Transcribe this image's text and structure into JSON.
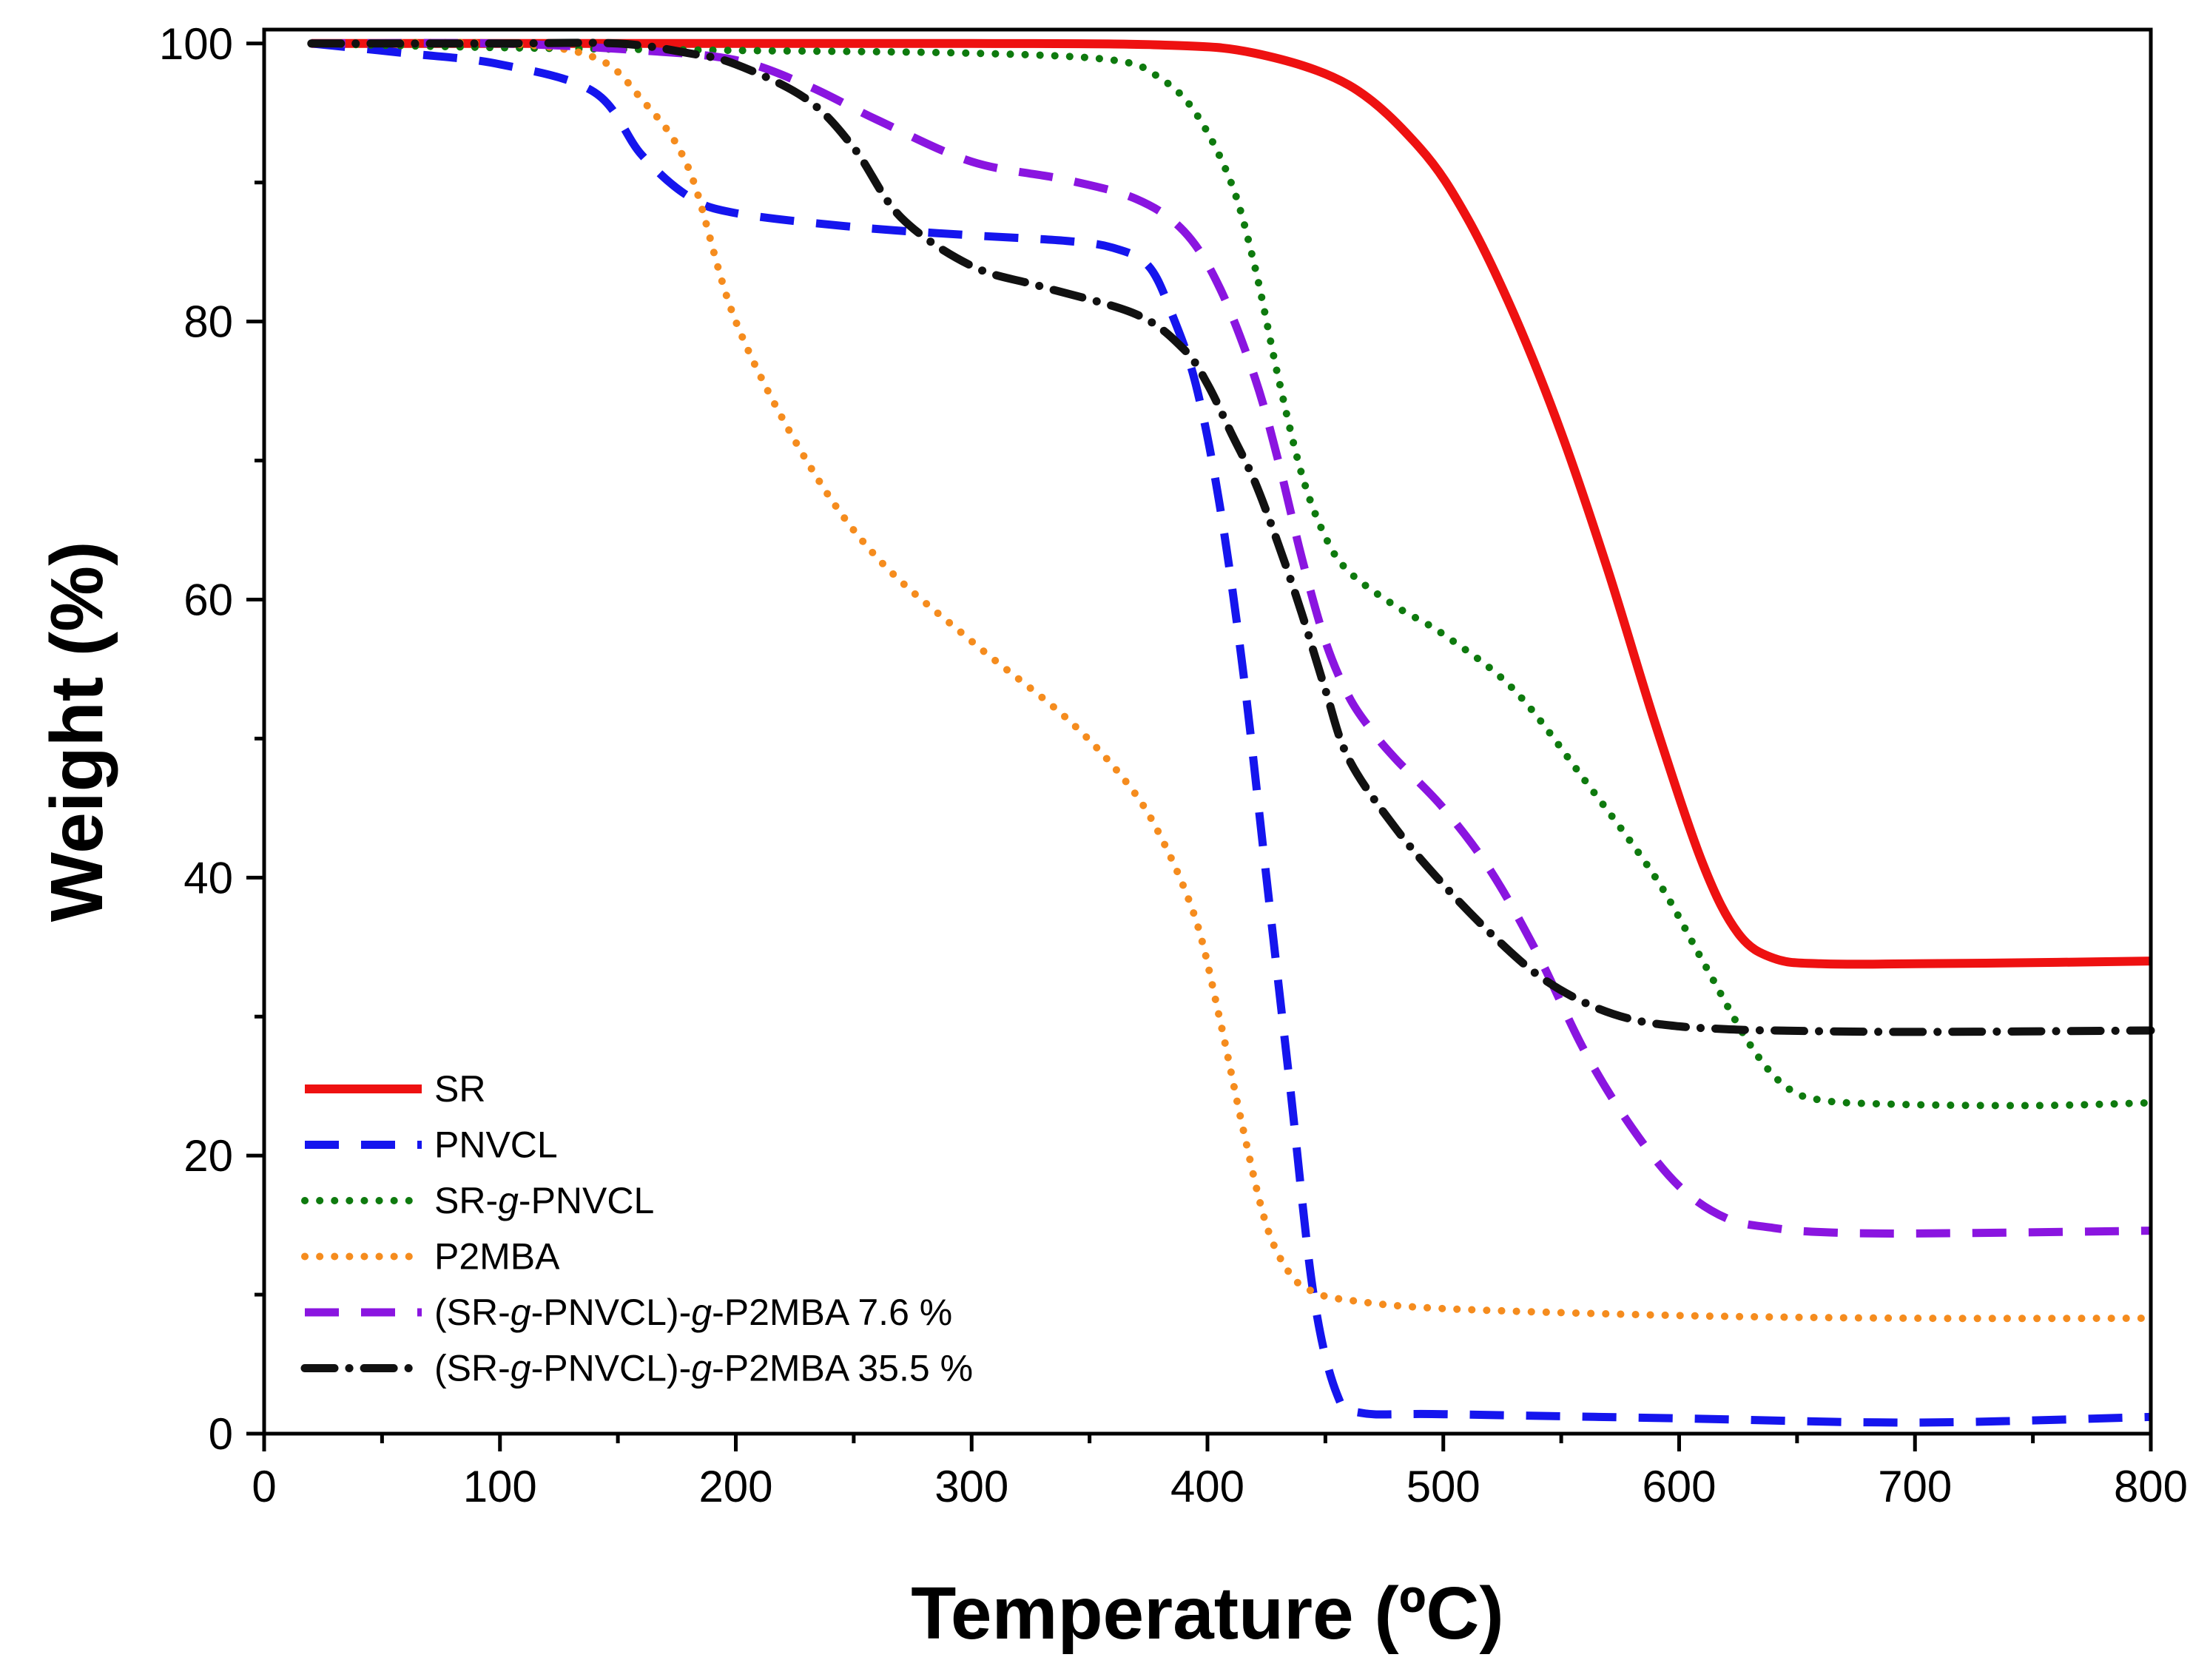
{
  "chart_data": {
    "type": "line",
    "title": "",
    "xlabel": "Temperature (ºC)",
    "ylabel": "Weight (%)",
    "xlim": [
      0,
      800
    ],
    "ylim": [
      0,
      100
    ],
    "xticks": [
      0,
      100,
      200,
      300,
      400,
      500,
      600,
      700,
      800
    ],
    "yticks": [
      0,
      20,
      40,
      60,
      80,
      100
    ],
    "grid": false,
    "legend_position": "bottom-left",
    "series": [
      {
        "name": "SR",
        "legend": [
          {
            "t": "SR",
            "i": false
          }
        ],
        "color": "#ee1111",
        "style": "solid",
        "x": [
          20,
          100,
          200,
          300,
          380,
          420,
          460,
          490,
          510,
          530,
          550,
          570,
          590,
          610,
          625,
          640,
          660,
          700,
          760,
          800
        ],
        "y": [
          100,
          100,
          100,
          100,
          99.9,
          99.3,
          97,
          92.5,
          87.5,
          80.5,
          72,
          62,
          51,
          41,
          36,
          34.2,
          33.8,
          33.8,
          33.9,
          34
        ]
      },
      {
        "name": "PNVCL",
        "legend": [
          {
            "t": "PNVCL",
            "i": false
          }
        ],
        "color": "#1515ee",
        "style": "dashed",
        "x": [
          20,
          60,
          100,
          140,
          160,
          180,
          200,
          250,
          300,
          340,
          360,
          375,
          385,
          395,
          405,
          415,
          425,
          435,
          445,
          455,
          465,
          500,
          600,
          700,
          800
        ],
        "y": [
          100,
          99.3,
          98.5,
          96.5,
          92,
          89,
          87.8,
          86.8,
          86.2,
          85.8,
          85.3,
          84,
          80.5,
          75.5,
          67,
          55,
          40,
          25,
          10,
          2.8,
          1.5,
          1.4,
          1.1,
          0.8,
          1.2
        ]
      },
      {
        "name": "SR-g-PNVCL",
        "legend": [
          {
            "t": "SR-",
            "i": false
          },
          {
            "t": "g",
            "i": true
          },
          {
            "t": "-PNVCL",
            "i": false
          }
        ],
        "color": "#0e7a0e",
        "style": "dotted",
        "x": [
          20,
          100,
          200,
          300,
          360,
          380,
          395,
          410,
          420,
          430,
          440,
          450,
          460,
          480,
          500,
          530,
          560,
          590,
          610,
          630,
          645,
          660,
          690,
          750,
          800
        ],
        "y": [
          100,
          99.7,
          99.5,
          99.3,
          98.8,
          97.5,
          95,
          90,
          84,
          76,
          69,
          64.5,
          62,
          59.5,
          57.5,
          53.5,
          47,
          40,
          34,
          28,
          25,
          24,
          23.7,
          23.6,
          23.8
        ]
      },
      {
        "name": "P2MBA",
        "legend": [
          {
            "t": "P2MBA",
            "i": false
          }
        ],
        "color": "#f58c1e",
        "style": "dotted",
        "x": [
          20,
          100,
          140,
          160,
          180,
          200,
          230,
          260,
          300,
          340,
          365,
          380,
          395,
          405,
          415,
          425,
          435,
          445,
          460,
          500,
          600,
          700,
          800
        ],
        "y": [
          100,
          100,
          99,
          96,
          91,
          80,
          70,
          63,
          57,
          51.5,
          47,
          43,
          37,
          30,
          22,
          15,
          11.5,
          10.2,
          9.6,
          9,
          8.5,
          8.3,
          8.3
        ]
      },
      {
        "name": "(SR-g-PNVCL)-g-P2MBA 7.6 %",
        "legend": [
          {
            "t": "(SR-",
            "i": false
          },
          {
            "t": "g",
            "i": true
          },
          {
            "t": "-PNVCL)-",
            "i": false
          },
          {
            "t": "g",
            "i": true
          },
          {
            "t": "-P2MBA 7.6 %",
            "i": false
          }
        ],
        "color": "#8a15e0",
        "style": "dashed",
        "x": [
          20,
          100,
          160,
          200,
          230,
          260,
          300,
          340,
          370,
          390,
          405,
          420,
          430,
          440,
          450,
          460,
          470,
          480,
          500,
          520,
          540,
          560,
          580,
          600,
          620,
          640,
          660,
          700,
          800
        ],
        "y": [
          100,
          100,
          99.5,
          98.8,
          97,
          94.5,
          91.5,
          90.2,
          88.8,
          86.5,
          82.5,
          76,
          70,
          63,
          57,
          53,
          50.5,
          48.5,
          45,
          40.5,
          34.5,
          27.5,
          22,
          17.8,
          15.5,
          14.8,
          14.5,
          14.4,
          14.6
        ]
      },
      {
        "name": "(SR-g-PNVCL)-g-P2MBA 35.5 %",
        "legend": [
          {
            "t": "(SR-",
            "i": false
          },
          {
            "t": "g",
            "i": true
          },
          {
            "t": "-PNVCL)-",
            "i": false
          },
          {
            "t": "g",
            "i": true
          },
          {
            "t": "-P2MBA 35.5 %",
            "i": false
          }
        ],
        "color": "#111111",
        "style": "dashdot",
        "x": [
          20,
          100,
          150,
          180,
          200,
          230,
          250,
          270,
          300,
          330,
          370,
          390,
          400,
          410,
          420,
          430,
          440,
          450,
          460,
          480,
          500,
          520,
          540,
          560,
          580,
          600,
          620,
          640,
          700,
          800
        ],
        "y": [
          100,
          100,
          100,
          99.3,
          98.5,
          96,
          92.5,
          87.5,
          84,
          82.5,
          80.5,
          78,
          75.5,
          72,
          68.5,
          64,
          59,
          53.5,
          48.5,
          43.5,
          39.5,
          36,
          33,
          31,
          29.8,
          29.3,
          29.1,
          29,
          28.9,
          29
        ]
      }
    ]
  }
}
